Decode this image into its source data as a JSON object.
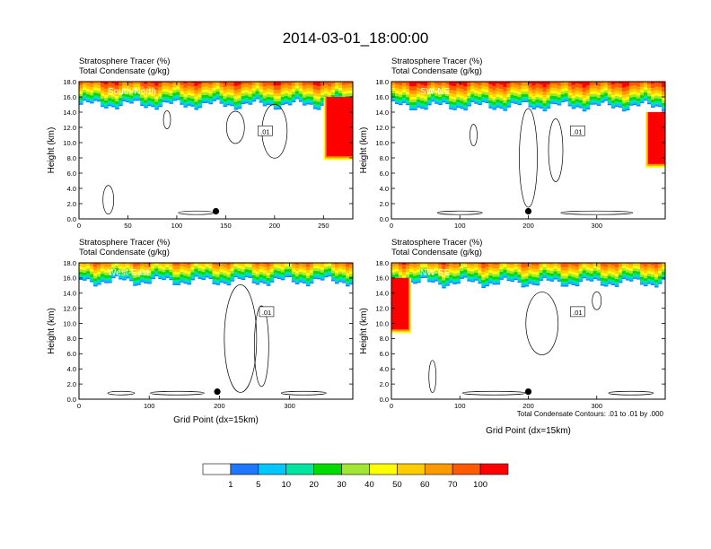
{
  "title": "2014-03-01_18:00:00",
  "contour_note": "Total Condensate Contours: .01 to .01 by .000",
  "x_axis_label": "Grid Point (dx=15km)",
  "y_axis_label": "Height (km)",
  "colors": {
    "levels": [
      "#ffffff",
      "#1e78ff",
      "#00c8ff",
      "#00e6a0",
      "#00dc00",
      "#a0e632",
      "#ffff00",
      "#ffcc00",
      "#ff9900",
      "#ff5a00",
      "#ff0000"
    ]
  },
  "chart_data": [
    {
      "type": "heatmap",
      "panel": "South-North",
      "title_line1": "Stratosphere Tracer   (%)",
      "title_line2": "Total Condensate   (g/kg)",
      "xlim": [
        0,
        280
      ],
      "ylim": [
        0,
        18
      ],
      "x_ticks": [
        0,
        50,
        100,
        150,
        200,
        250
      ],
      "y_ticks": [
        "0.0",
        "2.0",
        "4.0",
        "6.0",
        "8.0",
        "10.0",
        "12.0",
        "14.0",
        "16.0",
        "18.0"
      ],
      "tropopause_km": 15,
      "marker_x": 140,
      "contour_label": ".01"
    },
    {
      "type": "heatmap",
      "panel": "SW-NE",
      "title_line1": "Stratosphere Tracer   (%)",
      "title_line2": "Total Condensate   (g/kg)",
      "xlim": [
        0,
        400
      ],
      "ylim": [
        0,
        18
      ],
      "x_ticks": [
        0,
        100,
        200,
        300
      ],
      "y_ticks": [
        "0.0",
        "2.0",
        "4.0",
        "6.0",
        "8.0",
        "10.0",
        "12.0",
        "14.0",
        "16.0",
        "18.0"
      ],
      "tropopause_km": 14.8,
      "marker_x": 200,
      "contour_label": ".01"
    },
    {
      "type": "heatmap",
      "panel": "West-East",
      "title_line1": "Stratosphere Tracer   (%)",
      "title_line2": "Total Condensate   (g/kg)",
      "xlim": [
        0,
        390
      ],
      "ylim": [
        0,
        18
      ],
      "x_ticks": [
        0,
        100,
        200,
        300
      ],
      "y_ticks": [
        "0.0",
        "2.0",
        "4.0",
        "6.0",
        "8.0",
        "10.0",
        "12.0",
        "14.0",
        "16.0",
        "18.0"
      ],
      "tropopause_km": 15.6,
      "marker_x": 197,
      "contour_label": ".01"
    },
    {
      "type": "heatmap",
      "panel": "NW-SE",
      "title_line1": "Stratosphere Tracer   (%)",
      "title_line2": "Total Condensate   (g/kg)",
      "xlim": [
        0,
        400
      ],
      "ylim": [
        0,
        18
      ],
      "x_ticks": [
        0,
        100,
        200,
        300
      ],
      "y_ticks": [
        "0.0",
        "2.0",
        "4.0",
        "6.0",
        "8.0",
        "10.0",
        "12.0",
        "14.0",
        "16.0",
        "18.0"
      ],
      "tropopause_km": 15.4,
      "marker_x": 200,
      "contour_label": ".01"
    }
  ],
  "colorbar": {
    "labels": [
      "1",
      "5",
      "10",
      "20",
      "30",
      "40",
      "50",
      "60",
      "70",
      "100"
    ]
  }
}
